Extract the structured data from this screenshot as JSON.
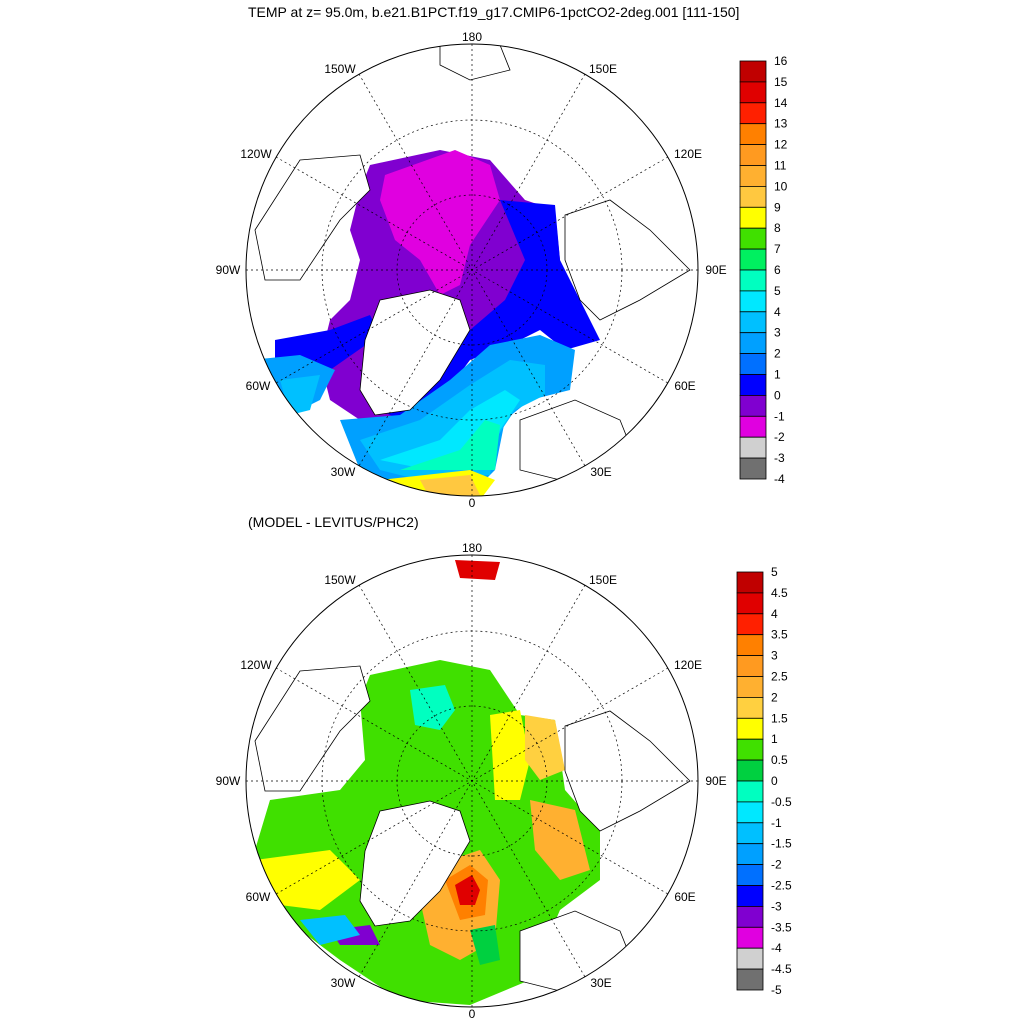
{
  "top_title": "TEMP at z=  95.0m, b.e21.B1PCT.f19_g17.CMIP6-1pctCO2-2deg.001 [111-150]",
  "bottom_title": "(MODEL - LEVITUS/PHC2)",
  "lon_labels": {
    "l180": "180",
    "l150w": "150W",
    "l150e": "150E",
    "l120w": "120W",
    "l120e": "120E",
    "l90w": "90W",
    "l90e": "90E",
    "l60w": "60W",
    "l60e": "60E",
    "l30w": "30W",
    "l30e": "30E",
    "l0": "0"
  },
  "colorbar_top": {
    "labels": [
      "16",
      "15",
      "14",
      "13",
      "12",
      "11",
      "10",
      "9",
      "8",
      "7",
      "6",
      "5",
      "4",
      "3",
      "2",
      "1",
      "0",
      "-1",
      "-2",
      "-3",
      "-4"
    ],
    "colors": [
      "#c00000",
      "#e00000",
      "#ff2000",
      "#ff8000",
      "#ff9a20",
      "#ffb030",
      "#ffc840",
      "#ffff00",
      "#40e000",
      "#00f060",
      "#00ffc0",
      "#00e8ff",
      "#00c0ff",
      "#00a0ff",
      "#0070ff",
      "#0000ff",
      "#8000d0",
      "#e000e0",
      "#d0d0d0",
      "#707070"
    ]
  },
  "colorbar_bottom": {
    "labels": [
      "5",
      "4.5",
      "4",
      "3.5",
      "3",
      "2.5",
      "2",
      "1.5",
      "1",
      "0.5",
      "0",
      "-0.5",
      "-1",
      "-1.5",
      "-2",
      "-2.5",
      "-3",
      "-3.5",
      "-4",
      "-4.5",
      "-5"
    ],
    "colors": [
      "#c00000",
      "#e00000",
      "#ff2000",
      "#ff8000",
      "#ff9a20",
      "#ffb030",
      "#ffd040",
      "#ffff00",
      "#40e000",
      "#00d040",
      "#00ffc0",
      "#00e8ff",
      "#00c0ff",
      "#00a0ff",
      "#0070ff",
      "#0000ff",
      "#8000d0",
      "#e000e0",
      "#d0d0d0",
      "#707070"
    ]
  }
}
